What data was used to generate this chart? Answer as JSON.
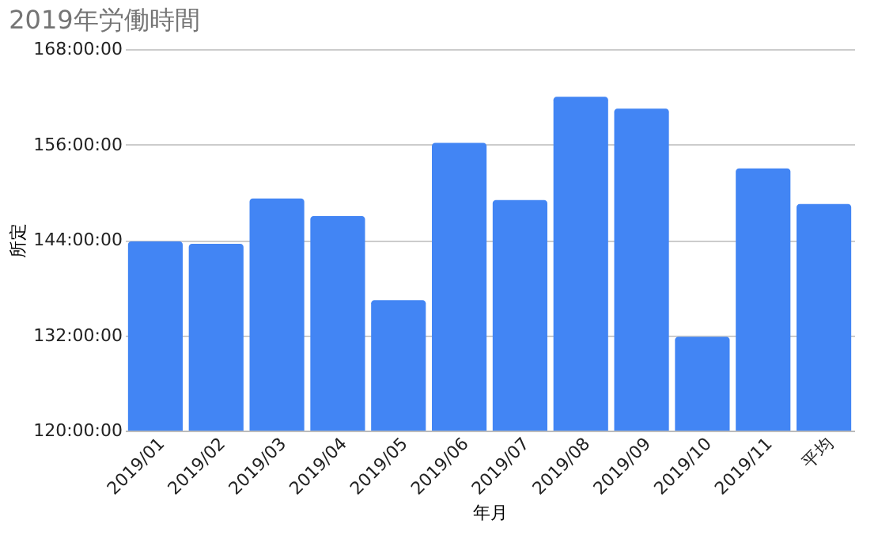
{
  "chart_data": {
    "type": "bar",
    "title": "2019年労働時間",
    "xlabel": "年月",
    "ylabel": "所定",
    "categories": [
      "2019/01",
      "2019/02",
      "2019/03",
      "2019/04",
      "2019/05",
      "2019/06",
      "2019/07",
      "2019/08",
      "2019/09",
      "2019/10",
      "2019/11",
      "平均"
    ],
    "values": [
      143.8,
      143.5,
      149.2,
      147.0,
      136.4,
      156.2,
      149.0,
      162.0,
      160.5,
      131.8,
      153.0,
      148.5
    ],
    "color": "#4285f4",
    "ylim": [
      120,
      168
    ],
    "yticks": [
      {
        "value": 120,
        "label": "120:00:00"
      },
      {
        "value": 132,
        "label": "132:00:00"
      },
      {
        "value": 144,
        "label": "144:00:00"
      },
      {
        "value": 156,
        "label": "156:00:00"
      },
      {
        "value": 168,
        "label": "168:00:00"
      }
    ],
    "grid": "y"
  }
}
